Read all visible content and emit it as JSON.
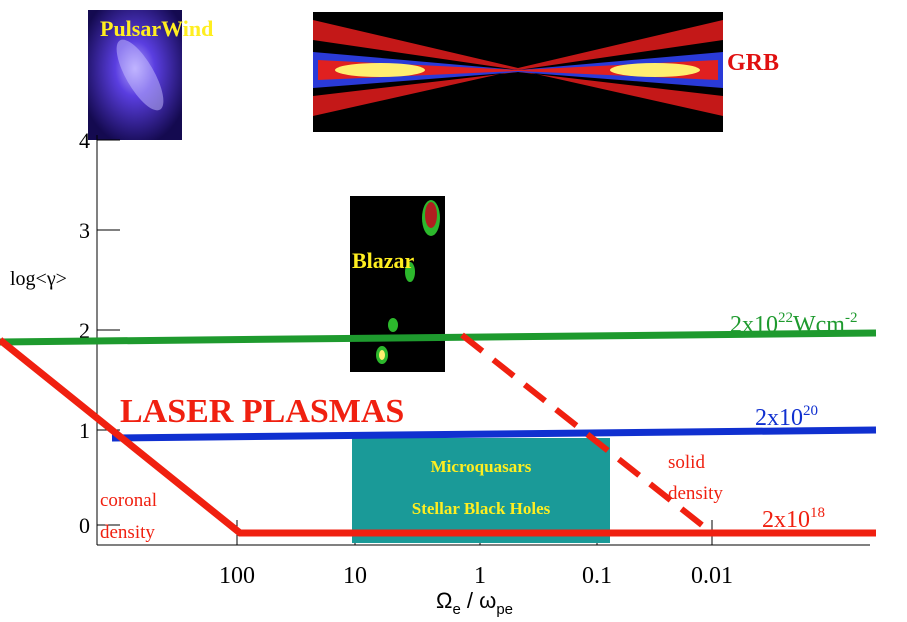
{
  "images": {
    "pulsar": "PulsarWind",
    "grb": "GRB",
    "blazar": "Blazar"
  },
  "axes": {
    "y_label": "log<γ>",
    "y_ticks": [
      "0",
      "1",
      "2",
      "3",
      "4"
    ],
    "x_ticks": [
      "100",
      "10",
      "1",
      "0.1",
      "0.01"
    ],
    "x_label": {
      "omega": "Ω",
      "omega_sub": "e",
      "sep": " / ω",
      "sep_sub": "pe"
    }
  },
  "lines": {
    "green": {
      "base": "2x10",
      "exp": "22",
      "unit": "Wcm",
      "unit_exp": "-2"
    },
    "blue": {
      "base": "2x10",
      "exp": "20"
    },
    "red": {
      "base": "2x10",
      "exp": "18"
    }
  },
  "region_title": "LASER PLASMAS",
  "box": [
    "Microquasars",
    "Stellar Black Holes"
  ],
  "annotations": {
    "solid": [
      "solid",
      "density"
    ],
    "coronal": [
      "coronal",
      "density"
    ]
  }
}
